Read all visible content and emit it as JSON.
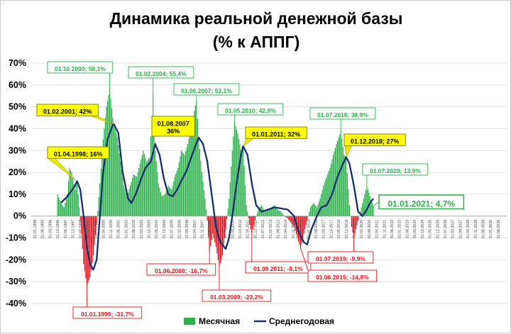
{
  "chart_data": {
    "type": "bar",
    "title": "Динамика реальной денежной базы",
    "subtitle": "(% к АППГ)",
    "y_ticks": [
      "70%",
      "60%",
      "50%",
      "40%",
      "30%",
      "20%",
      "10%",
      "0%",
      "-10%",
      "-20%",
      "-30%",
      "-40%"
    ],
    "y_values": [
      70,
      60,
      50,
      40,
      30,
      20,
      10,
      0,
      -10,
      -20,
      -30,
      -40
    ],
    "ylim": [
      -45,
      72
    ],
    "x_range": [
      "01.01.1995",
      "01.12.2030"
    ],
    "x_ticks": [
      "01.01.1995",
      "01.08.1995",
      "01.03.1996",
      "01.10.1996",
      "01.05.1997",
      "01.12.1997",
      "01.07.1998",
      "01.02.1999",
      "01.09.1999",
      "01.04.2000",
      "01.11.2000",
      "01.06.2001",
      "01.01.2002",
      "01.08.2002",
      "01.03.2003",
      "01.10.2003",
      "01.05.2004",
      "01.12.2004",
      "01.07.2005",
      "01.02.2006",
      "01.09.2006",
      "01.04.2007",
      "01.11.2007",
      "01.06.2008",
      "01.01.2009",
      "01.08.2009",
      "01.03.2010",
      "01.10.2010",
      "01.05.2011",
      "01.12.2011",
      "01.07.2012",
      "01.02.2013",
      "01.09.2013",
      "01.04.2014",
      "01.11.2014",
      "01.06.2015",
      "01.01.2016",
      "01.08.2016",
      "01.03.2017",
      "01.10.2017",
      "01.05.2018",
      "01.12.2018",
      "01.07.2019",
      "01.02.2020",
      "01.09.2020",
      "01.04.2021",
      "01.11.2021",
      "01.06.2022",
      "01.01.2023",
      "01.08.2023",
      "01.03.2024",
      "01.10.2024",
      "01.05.2025",
      "01.12.2025",
      "01.07.2026",
      "01.02.2027",
      "01.09.2027",
      "01.04.2028",
      "01.11.2028",
      "01.06.2029",
      "01.01.2030",
      "01.08.2030"
    ],
    "grid": true,
    "legend_position": "bottom",
    "series": [
      {
        "name": "Месячная",
        "kind": "bar",
        "color_positive": "#2bb04b",
        "color_negative": "#e8101a",
        "anchors": [
          [
            "1996-10",
            10
          ],
          [
            "1997-01",
            6
          ],
          [
            "1997-04",
            4
          ],
          [
            "1997-07",
            10
          ],
          [
            "1997-09",
            22
          ],
          [
            "1997-11",
            20
          ],
          [
            "1998-02",
            12
          ],
          [
            "1998-04",
            16
          ],
          [
            "1998-06",
            4
          ],
          [
            "1998-08",
            -8
          ],
          [
            "1998-10",
            -22
          ],
          [
            "1999-01",
            -31.7
          ],
          [
            "1999-04",
            -28
          ],
          [
            "1999-07",
            -18
          ],
          [
            "1999-10",
            -4
          ],
          [
            "2000-01",
            15
          ],
          [
            "2000-04",
            35
          ],
          [
            "2000-07",
            50
          ],
          [
            "2000-10",
            58.1
          ],
          [
            "2001-01",
            45
          ],
          [
            "2001-02",
            42
          ],
          [
            "2001-05",
            36
          ],
          [
            "2001-08",
            25
          ],
          [
            "2001-11",
            14
          ],
          [
            "2002-02",
            9
          ],
          [
            "2002-05",
            14
          ],
          [
            "2002-08",
            19
          ],
          [
            "2002-11",
            18
          ],
          [
            "2003-02",
            24
          ],
          [
            "2003-05",
            30
          ],
          [
            "2003-08",
            25
          ],
          [
            "2003-11",
            27
          ],
          [
            "2004-02",
            55.4
          ],
          [
            "2004-04",
            30
          ],
          [
            "2004-07",
            15
          ],
          [
            "2004-10",
            9
          ],
          [
            "2005-01",
            10
          ],
          [
            "2005-04",
            14
          ],
          [
            "2005-07",
            12
          ],
          [
            "2005-10",
            18
          ],
          [
            "2006-01",
            22
          ],
          [
            "2006-04",
            30
          ],
          [
            "2006-07",
            28
          ],
          [
            "2006-10",
            33
          ],
          [
            "2007-01",
            40
          ],
          [
            "2007-04",
            48
          ],
          [
            "2007-06",
            53.1
          ],
          [
            "2007-08",
            36
          ],
          [
            "2007-11",
            20
          ],
          [
            "2008-02",
            8
          ],
          [
            "2008-04",
            -2
          ],
          [
            "2008-06",
            -16.7
          ],
          [
            "2008-09",
            -8
          ],
          [
            "2008-12",
            -14
          ],
          [
            "2009-03",
            -23.2
          ],
          [
            "2009-06",
            -18
          ],
          [
            "2009-09",
            -6
          ],
          [
            "2009-12",
            8
          ],
          [
            "2010-03",
            30
          ],
          [
            "2010-05",
            42.9
          ],
          [
            "2010-08",
            38
          ],
          [
            "2010-11",
            30
          ],
          [
            "2011-01",
            32
          ],
          [
            "2011-04",
            5
          ],
          [
            "2011-07",
            -4
          ],
          [
            "2011-09",
            -8.1
          ],
          [
            "2011-12",
            -2
          ],
          [
            "2012-03",
            3
          ],
          [
            "2012-06",
            5
          ],
          [
            "2012-09",
            2
          ],
          [
            "2012-12",
            3
          ],
          [
            "2013-03",
            4
          ],
          [
            "2013-06",
            5
          ],
          [
            "2013-09",
            3
          ],
          [
            "2013-12",
            2
          ],
          [
            "2014-03",
            0
          ],
          [
            "2014-06",
            -1
          ],
          [
            "2014-09",
            -3
          ],
          [
            "2014-12",
            -5
          ],
          [
            "2015-03",
            -10
          ],
          [
            "2015-06",
            -14.8
          ],
          [
            "2015-09",
            -8
          ],
          [
            "2015-12",
            -2
          ],
          [
            "2016-03",
            4
          ],
          [
            "2016-06",
            6
          ],
          [
            "2016-09",
            4
          ],
          [
            "2016-12",
            8
          ],
          [
            "2017-03",
            14
          ],
          [
            "2017-06",
            18
          ],
          [
            "2017-09",
            22
          ],
          [
            "2017-12",
            28
          ],
          [
            "2018-03",
            33
          ],
          [
            "2018-07",
            38.9
          ],
          [
            "2018-10",
            28
          ],
          [
            "2018-12",
            27
          ],
          [
            "2019-03",
            5
          ],
          [
            "2019-05",
            -5
          ],
          [
            "2019-07",
            -9.9
          ],
          [
            "2019-10",
            -4
          ],
          [
            "2020-01",
            2
          ],
          [
            "2020-04",
            8
          ],
          [
            "2020-07",
            13.9
          ],
          [
            "2020-10",
            9
          ],
          [
            "2021-01",
            4.7
          ]
        ]
      },
      {
        "name": "Среднегодовая",
        "kind": "line",
        "color": "#142f6e",
        "anchors": [
          [
            "1997-01",
            6
          ],
          [
            "1997-07",
            9
          ],
          [
            "1998-01",
            13
          ],
          [
            "1998-04",
            16
          ],
          [
            "1998-07",
            12
          ],
          [
            "1998-10",
            0
          ],
          [
            "1999-01",
            -14
          ],
          [
            "1999-04",
            -22
          ],
          [
            "1999-07",
            -24.5
          ],
          [
            "1999-10",
            -20
          ],
          [
            "2000-01",
            0
          ],
          [
            "2000-04",
            20
          ],
          [
            "2000-08",
            35
          ],
          [
            "2001-01",
            42
          ],
          [
            "2001-02",
            42
          ],
          [
            "2001-06",
            38
          ],
          [
            "2001-10",
            20
          ],
          [
            "2002-03",
            8
          ],
          [
            "2002-06",
            6
          ],
          [
            "2002-10",
            10
          ],
          [
            "2003-03",
            17
          ],
          [
            "2003-07",
            22
          ],
          [
            "2003-12",
            25
          ],
          [
            "2004-04",
            33
          ],
          [
            "2004-08",
            28
          ],
          [
            "2004-12",
            17
          ],
          [
            "2005-04",
            10
          ],
          [
            "2005-08",
            9
          ],
          [
            "2005-12",
            12
          ],
          [
            "2006-04",
            16
          ],
          [
            "2006-09",
            21
          ],
          [
            "2007-02",
            28
          ],
          [
            "2007-08",
            36
          ],
          [
            "2007-12",
            33
          ],
          [
            "2008-04",
            25
          ],
          [
            "2008-08",
            10
          ],
          [
            "2008-12",
            -5
          ],
          [
            "2009-04",
            -12
          ],
          [
            "2009-09",
            -15
          ],
          [
            "2009-12",
            -10
          ],
          [
            "2010-03",
            0
          ],
          [
            "2010-07",
            15
          ],
          [
            "2010-11",
            28
          ],
          [
            "2011-01",
            32
          ],
          [
            "2011-05",
            28
          ],
          [
            "2011-09",
            15
          ],
          [
            "2012-01",
            5
          ],
          [
            "2012-06",
            2
          ],
          [
            "2012-12",
            3
          ],
          [
            "2013-06",
            4
          ],
          [
            "2013-12",
            3.5
          ],
          [
            "2014-06",
            3
          ],
          [
            "2014-12",
            0
          ],
          [
            "2015-04",
            -7
          ],
          [
            "2015-09",
            -12
          ],
          [
            "2015-12",
            -13
          ],
          [
            "2016-04",
            -6
          ],
          [
            "2016-09",
            0
          ],
          [
            "2017-01",
            4
          ],
          [
            "2017-06",
            5
          ],
          [
            "2017-11",
            10
          ],
          [
            "2018-04",
            18
          ],
          [
            "2018-09",
            24
          ],
          [
            "2018-12",
            27
          ],
          [
            "2019-03",
            24
          ],
          [
            "2019-07",
            14
          ],
          [
            "2019-11",
            2
          ],
          [
            "2020-03",
            0
          ],
          [
            "2020-07",
            3
          ],
          [
            "2020-10",
            6
          ],
          [
            "2021-01",
            8
          ]
        ]
      }
    ],
    "annotations": [
      {
        "text": "01.10.2000; 58,1%",
        "date": "2000-10",
        "value": 58.1,
        "style": "green"
      },
      {
        "text": "01.02.2004; 55,4%",
        "date": "2004-02",
        "value": 55.4,
        "style": "green"
      },
      {
        "text": "01.06.2007; 53,1%",
        "date": "2007-06",
        "value": 53.1,
        "style": "green"
      },
      {
        "text": "01.05.2010; 42,9%",
        "date": "2010-05",
        "value": 42.9,
        "style": "green"
      },
      {
        "text": "01.07.2018; 38,9%",
        "date": "2018-07",
        "value": 38.9,
        "style": "green"
      },
      {
        "text": "01.07.2020; 13,9%",
        "date": "2020-07",
        "value": 13.9,
        "style": "green"
      },
      {
        "text": "01.01.2021; 4,7%",
        "date": "2021-01",
        "value": 4.7,
        "style": "green-big"
      },
      {
        "text": "01.02.2001; 42%",
        "date": "2001-02",
        "value": 42,
        "style": "yellow"
      },
      {
        "text": "01.04.1998; 16%",
        "date": "1998-04",
        "value": 16,
        "style": "yellow"
      },
      {
        "text": "01.08.2007\n36%",
        "date": "2007-08",
        "value": 36,
        "style": "yellow"
      },
      {
        "text": "01.01.2011; 32%",
        "date": "2011-01",
        "value": 32,
        "style": "yellow"
      },
      {
        "text": "01.12.2018; 27%",
        "date": "2018-12",
        "value": 27,
        "style": "yellow"
      },
      {
        "text": "01.01.1999; -31,7%",
        "date": "1999-01",
        "value": -31.7,
        "style": "red"
      },
      {
        "text": "01.06.2008; -16,7%",
        "date": "2008-06",
        "value": -16.7,
        "style": "red"
      },
      {
        "text": "01.03.2009; -23,2%",
        "date": "2009-03",
        "value": -23.2,
        "style": "red"
      },
      {
        "text": "01.09.2011; -8,1%",
        "date": "2011-09",
        "value": -8.1,
        "style": "red"
      },
      {
        "text": "01.07.2019; -9,9%",
        "date": "2019-07",
        "value": -9.9,
        "style": "red"
      },
      {
        "text": "01.06.2015; -14,8%",
        "date": "2015-06",
        "value": -14.8,
        "style": "red"
      }
    ]
  }
}
